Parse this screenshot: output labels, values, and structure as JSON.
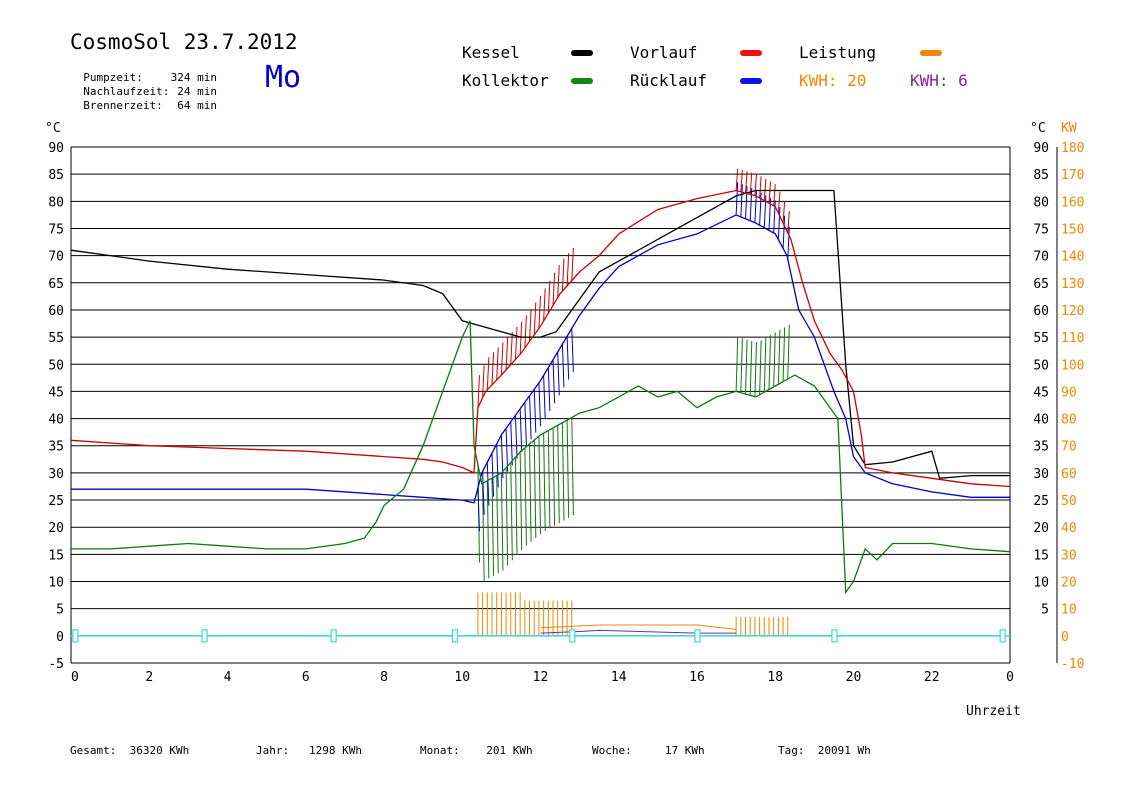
{
  "header": {
    "title": "CosmoSol 23.7.2012",
    "day": "Mo",
    "stats": [
      {
        "label": "Pumpzeit:",
        "value": "324 min"
      },
      {
        "label": "Nachlaufzeit:",
        "value": "24 min"
      },
      {
        "label": "Brennerzeit:",
        "value": "64 min"
      }
    ]
  },
  "legend": {
    "kessel": "Kessel",
    "vorlauf": "Vorlauf",
    "leistung": "Leistung",
    "kollektor": "Kollektor",
    "ruecklauf": "Rücklauf",
    "kwh_orange": "KWH: 20",
    "kwh_purple": "KWH: 6"
  },
  "footer": [
    {
      "label": "Gesamt:",
      "value": "36320 KWh"
    },
    {
      "label": "Jahr:",
      "value": "1298 KWh"
    },
    {
      "label": "Monat:",
      "value": "201 KWh"
    },
    {
      "label": "Woche:",
      "value": "17 KWh"
    },
    {
      "label": "Tag:",
      "value": "20091 Wh"
    }
  ],
  "chart_data": {
    "type": "line",
    "xlabel": "Uhrzeit",
    "y_left_unit": "°C",
    "y_right_unit_temp": "°C",
    "y_right_unit_power": "KW",
    "xlim": [
      0,
      24
    ],
    "ylim": [
      -5,
      90
    ],
    "x_ticks": [
      "0",
      "2",
      "4",
      "6",
      "8",
      "10",
      "12",
      "14",
      "16",
      "18",
      "20",
      "22",
      "0"
    ],
    "y_ticks_left": [
      "90",
      "85",
      "80",
      "75",
      "70",
      "65",
      "60",
      "55",
      "50",
      "45",
      "40",
      "35",
      "30",
      "25",
      "20",
      "15",
      "10",
      "5",
      "0",
      "-5"
    ],
    "y_ticks_right_temp": [
      "90",
      "85",
      "80",
      "75",
      "70",
      "65",
      "60",
      "55",
      "50",
      "45",
      "40",
      "35",
      "30",
      "25",
      "20",
      "15",
      "10",
      "5"
    ],
    "y_ticks_right_power": [
      "180",
      "170",
      "160",
      "150",
      "140",
      "130",
      "120",
      "110",
      "100",
      "90",
      "80",
      "70",
      "60",
      "50",
      "40",
      "30",
      "20",
      "10",
      "0",
      "-10"
    ],
    "grid": true,
    "colors": {
      "kessel": "#000000",
      "vorlauf": "#cc0000",
      "ruecklauf": "#0000cc",
      "kollektor": "#117711",
      "leistung": "#ee8800",
      "kwh_purple": "#882299",
      "pump": "#33dddd"
    },
    "series": [
      {
        "name": "Kessel",
        "key": "kessel",
        "x": [
          0,
          2,
          4,
          6,
          8,
          9,
          9.5,
          10,
          10.5,
          11,
          11.5,
          12,
          12.4,
          13,
          13.5,
          14,
          15,
          16,
          17,
          17.5,
          18,
          19,
          19.5,
          19.8,
          20,
          20.3,
          21,
          22,
          22.2,
          23,
          24
        ],
        "y": [
          71,
          69,
          67.5,
          66.5,
          65.5,
          64.5,
          63,
          58,
          57,
          56,
          55,
          55,
          56,
          62,
          67,
          69,
          73,
          77,
          81,
          82,
          82,
          82,
          82,
          50,
          35,
          31.5,
          32,
          34,
          29,
          29.5,
          29.5
        ]
      },
      {
        "name": "Vorlauf",
        "key": "vorlauf",
        "x": [
          0,
          2,
          4,
          6,
          8,
          9,
          9.5,
          10,
          10.3,
          10.4,
          10.6,
          11,
          11.5,
          12,
          12.5,
          13,
          13.5,
          14,
          15,
          16,
          17,
          17.5,
          18,
          18.4,
          18.7,
          19,
          19.4,
          19.7,
          20,
          20.2,
          20.3,
          21,
          22,
          23,
          24
        ],
        "y": [
          36,
          35,
          34.5,
          34,
          33,
          32.5,
          32,
          31,
          30,
          42,
          45,
          48,
          52,
          57,
          63,
          67,
          70,
          74,
          78.5,
          80.5,
          82,
          81,
          79,
          73,
          65,
          58,
          52,
          49,
          45,
          37,
          31,
          30,
          29,
          28,
          27.5
        ]
      },
      {
        "name": "Rücklauf",
        "key": "ruecklauf",
        "x": [
          0,
          2,
          4,
          6,
          8,
          9,
          10,
          10.3,
          10.5,
          11,
          11.5,
          12,
          12.5,
          13,
          13.5,
          14,
          15,
          16,
          17,
          17.5,
          18,
          18.3,
          18.6,
          19,
          19.5,
          19.8,
          20,
          20.3,
          21,
          22,
          23,
          24
        ],
        "y": [
          27,
          27,
          27,
          27,
          26,
          25.5,
          25,
          24.5,
          30,
          37,
          42,
          47,
          53,
          59,
          64,
          68,
          72,
          74,
          77.5,
          76,
          74,
          70,
          60,
          55,
          45,
          40,
          33,
          30,
          28,
          26.5,
          25.5,
          25.5
        ]
      },
      {
        "name": "Kollektor",
        "key": "kollektor",
        "x": [
          0,
          1,
          2,
          3,
          4,
          5,
          6,
          7,
          7.5,
          7.8,
          8,
          8.5,
          9,
          9.5,
          10,
          10.2,
          10.3,
          10.5,
          11,
          11.5,
          12,
          12.5,
          13,
          13.5,
          14,
          14.5,
          15,
          15.5,
          16,
          16.5,
          17,
          17.5,
          18,
          18.5,
          19,
          19.4,
          19.6,
          19.8,
          20,
          20.3,
          20.6,
          21,
          22,
          23,
          24
        ],
        "y": [
          16,
          16,
          16.5,
          17,
          16.5,
          16,
          16,
          17,
          18,
          21,
          24,
          27,
          35,
          45,
          55,
          58,
          35,
          28,
          30,
          34,
          37,
          39,
          41,
          42,
          44,
          46,
          44,
          45,
          42,
          44,
          45,
          44,
          46,
          48,
          46,
          42,
          40,
          8,
          10,
          16,
          14,
          17,
          17,
          16,
          15.5
        ]
      }
    ],
    "pump_markers_x": [
      0.1,
      3.4,
      6.7,
      9.8,
      12.8,
      16,
      19.5,
      23.8
    ]
  }
}
